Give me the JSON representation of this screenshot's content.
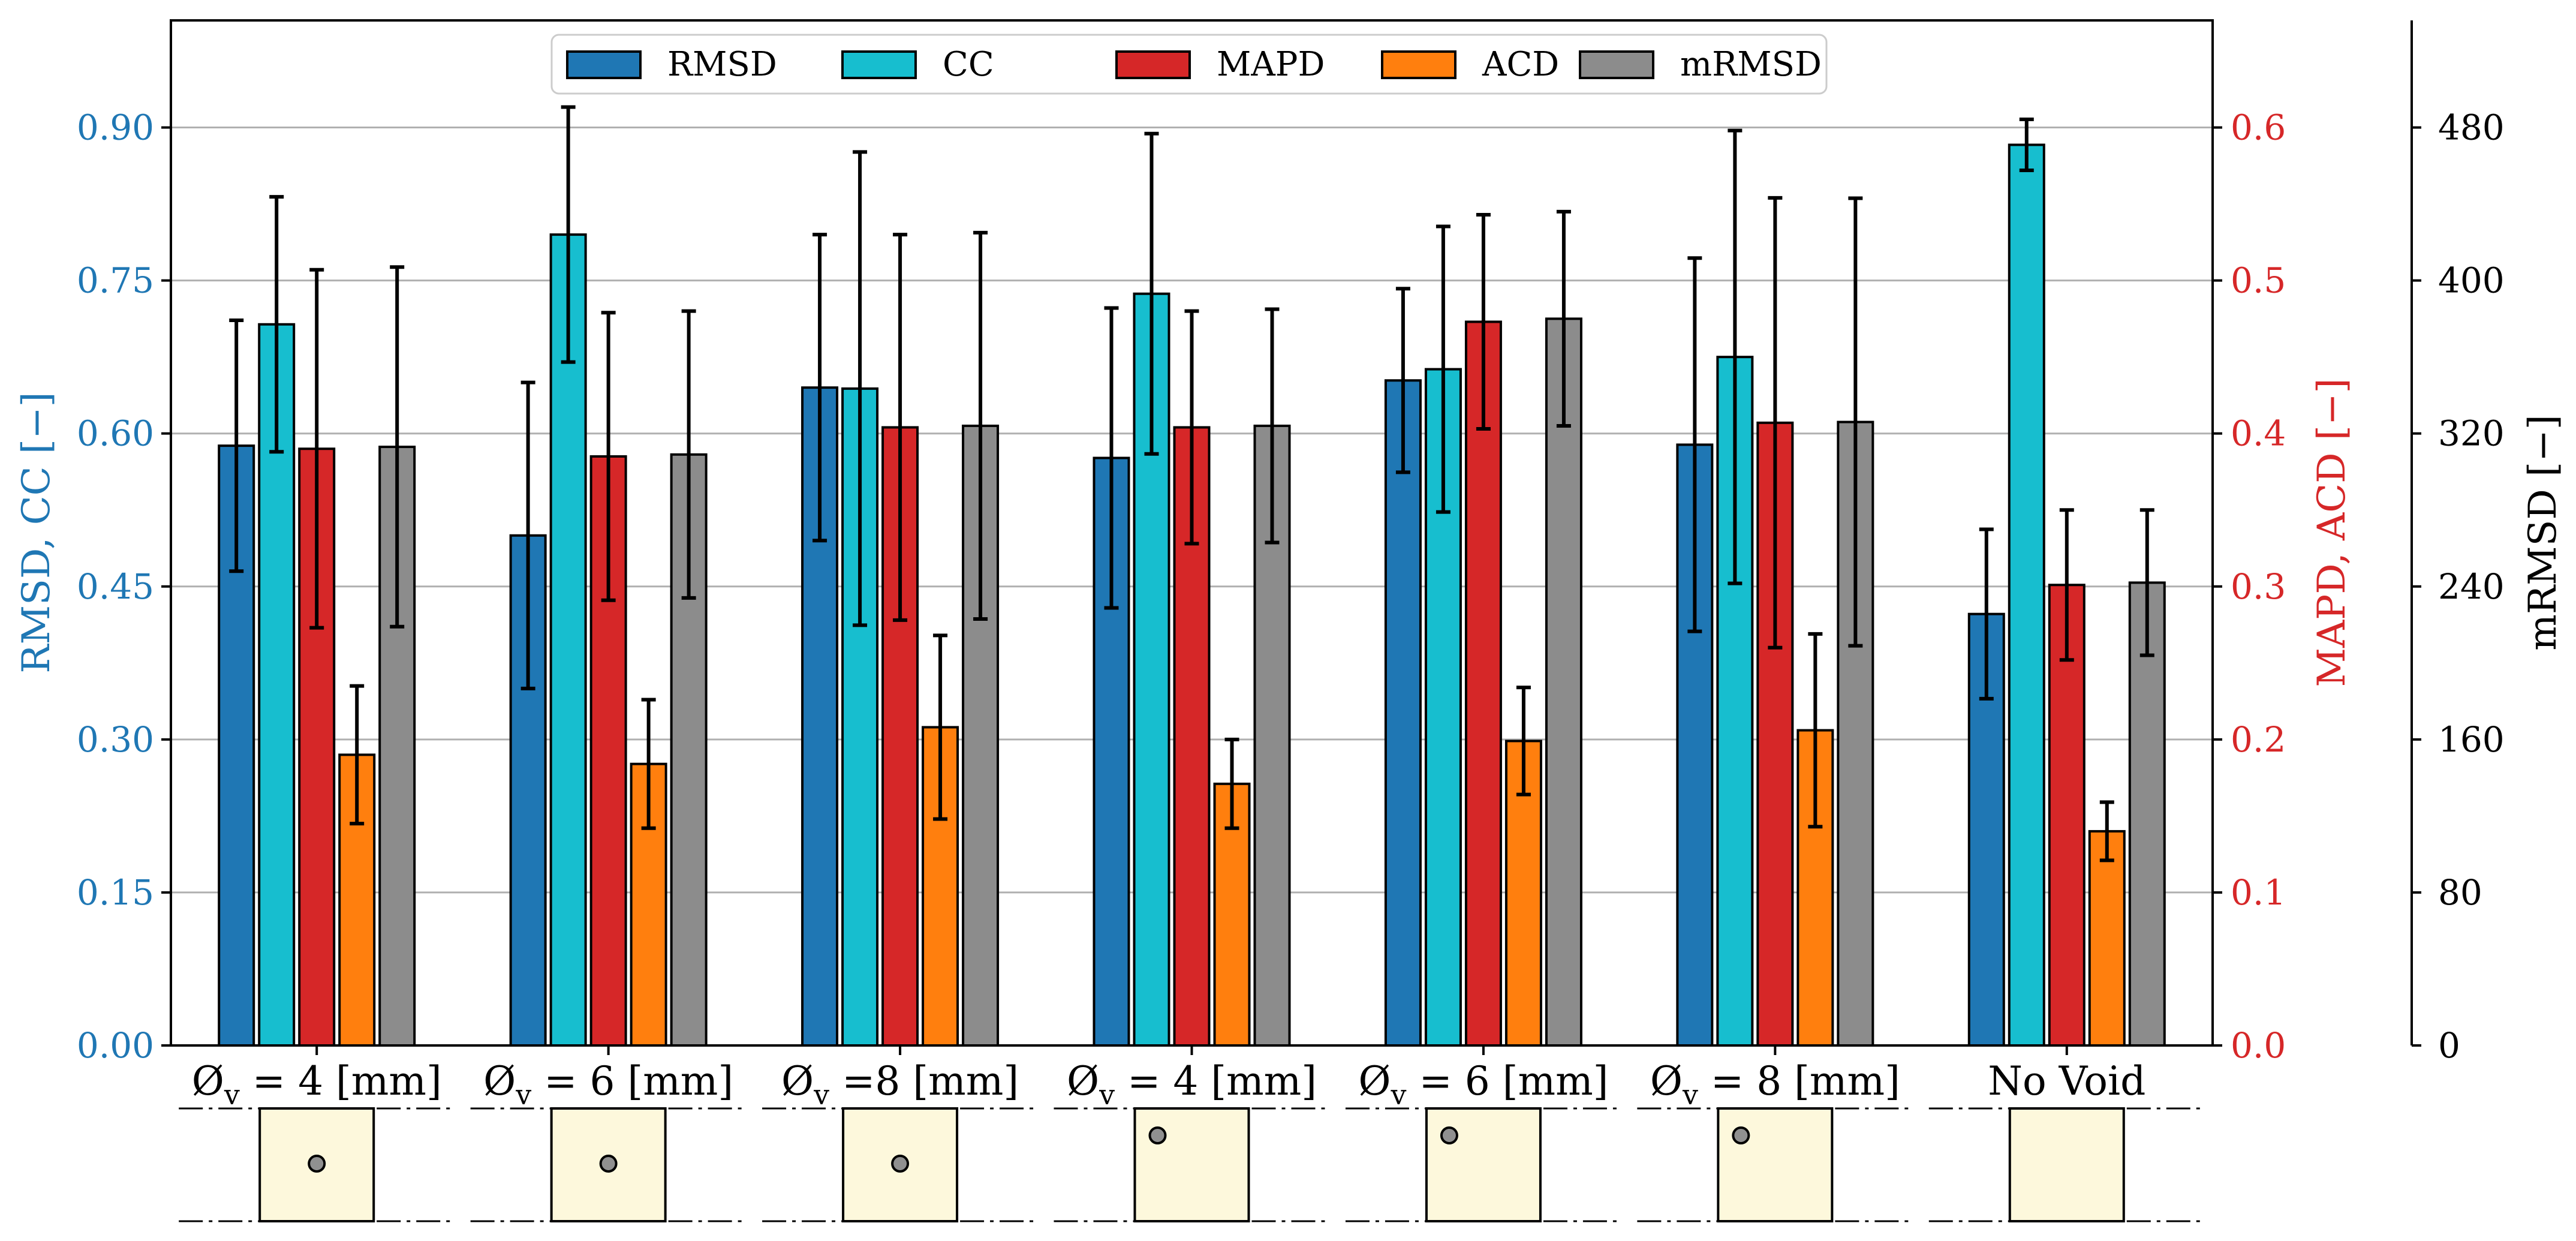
{
  "chart_data": {
    "type": "bar",
    "categories": [
      "Ø_v = 4 [mm]",
      "Ø_v = 6 [mm]",
      "Ø_v =8  [mm]",
      "Ø_v = 4 [mm]",
      "Ø_v = 6 [mm]",
      "Ø_v = 8 [mm]",
      "No Void"
    ],
    "category_labels": [
      {
        "prefix": "Ø",
        "sub": "v",
        "suffix": " = 4 [mm]"
      },
      {
        "prefix": "Ø",
        "sub": "v",
        "suffix": " = 6 [mm]"
      },
      {
        "prefix": "Ø",
        "sub": "v",
        "suffix": " =8  [mm]"
      },
      {
        "prefix": "Ø",
        "sub": "v",
        "suffix": " = 4 [mm]"
      },
      {
        "prefix": "Ø",
        "sub": "v",
        "suffix": " = 6 [mm]"
      },
      {
        "prefix": "Ø",
        "sub": "v",
        "suffix": " = 8 [mm]"
      },
      {
        "prefix": "No Void",
        "sub": "",
        "suffix": ""
      }
    ],
    "void_position": [
      "center",
      "center",
      "center",
      "top-left",
      "top-left",
      "top-left",
      "none"
    ],
    "series": [
      {
        "name": "RMSD",
        "axis": "left",
        "color": "#1f77b4",
        "values": [
          0.588,
          0.5,
          0.645,
          0.576,
          0.652,
          0.589,
          0.423
        ],
        "errors": [
          0.123,
          0.15,
          0.15,
          0.147,
          0.09,
          0.183,
          0.083
        ]
      },
      {
        "name": "CC",
        "axis": "left",
        "color": "#17becf",
        "values": [
          0.707,
          0.795,
          0.644,
          0.737,
          0.663,
          0.675,
          0.883
        ],
        "errors": [
          0.125,
          0.125,
          0.232,
          0.157,
          0.14,
          0.222,
          0.025
        ]
      },
      {
        "name": "MAPD",
        "axis": "right",
        "color": "#d62728",
        "values": [
          0.39,
          0.385,
          0.404,
          0.404,
          0.473,
          0.407,
          0.301
        ],
        "errors": [
          0.117,
          0.094,
          0.126,
          0.076,
          0.07,
          0.147,
          0.049
        ]
      },
      {
        "name": "ACD",
        "axis": "right",
        "color": "#ff7f0e",
        "values": [
          0.19,
          0.184,
          0.208,
          0.171,
          0.199,
          0.206,
          0.14
        ],
        "errors": [
          0.045,
          0.042,
          0.06,
          0.029,
          0.035,
          0.063,
          0.019
        ]
      },
      {
        "name": "mRMSD",
        "axis": "right2",
        "color": "#8c8c8c",
        "values": [
          313,
          309,
          324,
          324,
          380,
          326,
          242
        ],
        "errors": [
          94,
          75,
          101,
          61,
          56,
          117,
          38
        ]
      }
    ],
    "ylabel_left": "RMSD, CC [−]",
    "ylabel_right": "MAPD, ACD [−]",
    "ylabel_right2": "mRMSD  [−]",
    "ylim_left": [
      0,
      1.005
    ],
    "ylim_right": [
      0,
      0.67
    ],
    "ylim_right2": [
      0,
      536
    ],
    "yticks_left": [
      "0.00",
      "0.15",
      "0.30",
      "0.45",
      "0.60",
      "0.75",
      "0.90"
    ],
    "yticks_right": [
      "0.0",
      "0.1",
      "0.2",
      "0.3",
      "0.4",
      "0.5",
      "0.6"
    ],
    "yticks_right2": [
      "0",
      "80",
      "160",
      "240",
      "320",
      "400",
      "480"
    ],
    "grid": "horizontal",
    "legend_position": "top-center",
    "colors": {
      "left_axis": "#1f77b4",
      "right_axis": "#d62728",
      "right2_axis": "#000000",
      "specimen_fill": "#fdf8dc",
      "void_fill": "#909090"
    }
  }
}
